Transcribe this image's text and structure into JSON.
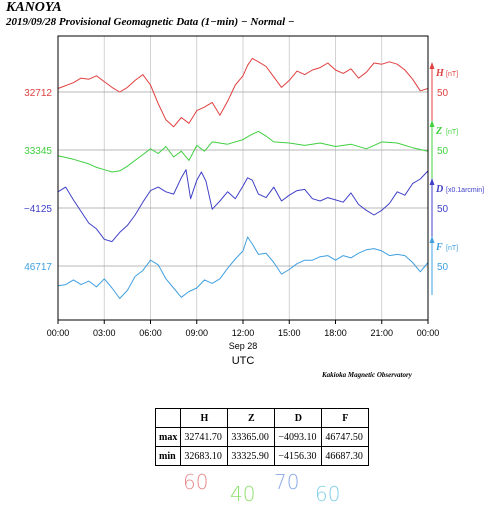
{
  "header": {
    "station": "KANOYA",
    "subtitle": "2019/09/28  Provisional Geomagnetic Data (1−min)  − Normal −"
  },
  "chart_data": {
    "type": "line",
    "x_unit": "hours (UTC)",
    "x_range": [
      0,
      24
    ],
    "x_ticks": [
      0,
      3,
      6,
      9,
      12,
      15,
      18,
      21,
      24
    ],
    "x_tick_labels": [
      "00:00",
      "03:00",
      "06:00",
      "09:00",
      "12:00",
      "15:00",
      "18:00",
      "21:00",
      "00:00"
    ],
    "date_label": "Sep 28",
    "xlabel": "UTC",
    "series": [
      {
        "name": "H",
        "unit": "[nT]",
        "color": "#e04040",
        "baseline": 32712,
        "baseline_label": "32712",
        "scale_label": "50",
        "scale": 50,
        "x": [
          0,
          1,
          1.5,
          2,
          2.5,
          3,
          3.5,
          4,
          4.5,
          5,
          5.5,
          6,
          6.5,
          7,
          7.5,
          8,
          8.5,
          9,
          9.5,
          10,
          10.5,
          11,
          11.5,
          12,
          12.3,
          12.6,
          13,
          13.5,
          14,
          14.5,
          15,
          15.5,
          16,
          16.5,
          17,
          17.5,
          18,
          18.5,
          19,
          19.5,
          20,
          20.5,
          21,
          21.5,
          22,
          22.5,
          23,
          23.5,
          24
        ],
        "values": [
          32715,
          32720,
          32724,
          32723,
          32726,
          32721,
          32716,
          32712,
          32716,
          32722,
          32727,
          32718,
          32702,
          32688,
          32682,
          32690,
          32685,
          32696,
          32699,
          32703,
          32692,
          32704,
          32718,
          32726,
          32735,
          32741,
          32738,
          32734,
          32725,
          32716,
          32722,
          32730,
          32727,
          32731,
          32733,
          32737,
          32731,
          32728,
          32732,
          32724,
          32729,
          32737,
          32736,
          32738,
          32736,
          32731,
          32723,
          32713,
          32715
        ]
      },
      {
        "name": "Z",
        "unit": "[nT]",
        "color": "#40d040",
        "baseline": 33345,
        "baseline_label": "33345",
        "scale_label": "50",
        "scale": 50,
        "x": [
          0,
          1,
          2,
          2.5,
          3,
          3.5,
          4,
          4.5,
          5,
          5.5,
          6,
          6.5,
          7,
          7.5,
          8,
          8.5,
          9,
          9.5,
          10,
          11,
          12,
          12.5,
          13,
          13.5,
          14,
          15,
          16,
          17,
          18,
          19,
          20,
          20.5,
          21,
          22,
          23,
          24
        ],
        "values": [
          33340,
          33337,
          33333,
          33330,
          33328,
          33326,
          33327,
          33331,
          33336,
          33341,
          33346,
          33342,
          33348,
          33339,
          33344,
          33336,
          33349,
          33344,
          33352,
          33350,
          33354,
          33358,
          33361,
          33357,
          33352,
          33351,
          33349,
          33351,
          33348,
          33350,
          33346,
          33349,
          33352,
          33351,
          33347,
          33344
        ]
      },
      {
        "name": "D",
        "unit": "[x0.1arcmin]",
        "color": "#4040c8",
        "baseline": -4125,
        "baseline_label": "−4125",
        "scale_label": "50",
        "scale": 50,
        "x": [
          0,
          0.5,
          1,
          1.5,
          2,
          2.5,
          3,
          3.5,
          4,
          4.5,
          5,
          5.5,
          6,
          6.5,
          7,
          7.5,
          8,
          8.3,
          8.6,
          9,
          9.3,
          9.6,
          10,
          10.5,
          11,
          11.5,
          12,
          12.3,
          12.6,
          13,
          13.5,
          14,
          14.5,
          15,
          15.5,
          16,
          16.5,
          17,
          17.5,
          18,
          18.5,
          19,
          19.5,
          20,
          20.5,
          21,
          21.5,
          22,
          22.5,
          23,
          23.5,
          24
        ],
        "values": [
          -4111,
          -4107,
          -4118,
          -4128,
          -4138,
          -4143,
          -4152,
          -4154,
          -4146,
          -4140,
          -4131,
          -4120,
          -4110,
          -4107,
          -4111,
          -4113,
          -4099,
          -4092,
          -4117,
          -4101,
          -4094,
          -4102,
          -4126,
          -4119,
          -4111,
          -4117,
          -4106,
          -4099,
          -4101,
          -4113,
          -4116,
          -4107,
          -4119,
          -4114,
          -4110,
          -4109,
          -4117,
          -4119,
          -4116,
          -4118,
          -4120,
          -4112,
          -4122,
          -4127,
          -4131,
          -4127,
          -4121,
          -4111,
          -4114,
          -4104,
          -4100,
          -4093
        ]
      },
      {
        "name": "F",
        "unit": "[nT]",
        "color": "#40a0e0",
        "baseline": 46717,
        "baseline_label": "46717",
        "scale_label": "50",
        "scale": 50,
        "x": [
          0,
          0.5,
          1,
          1.5,
          2,
          2.5,
          3,
          3.5,
          4,
          4.5,
          5,
          5.5,
          6,
          6.5,
          7,
          7.5,
          8,
          8.5,
          9,
          9.5,
          10,
          10.5,
          11,
          11.5,
          12,
          12.3,
          12.6,
          13,
          13.5,
          14,
          14.5,
          15,
          15.5,
          16,
          16.5,
          17,
          17.5,
          18,
          18.5,
          19,
          19.5,
          20,
          20.5,
          21,
          21.5,
          22,
          22.5,
          23,
          23.5,
          24
        ],
        "values": [
          46700,
          46701,
          46705,
          46701,
          46704,
          46699,
          46706,
          46698,
          46689,
          46696,
          46708,
          46713,
          46722,
          46718,
          46706,
          46698,
          46690,
          46695,
          46698,
          46705,
          46702,
          46706,
          46715,
          46723,
          46730,
          46742,
          46736,
          46727,
          46728,
          46720,
          46710,
          46714,
          46719,
          46722,
          46722,
          46725,
          46726,
          46722,
          46726,
          46724,
          46728,
          46731,
          46732,
          46730,
          46726,
          46727,
          46726,
          46720,
          46712,
          46720
        ]
      }
    ]
  },
  "credit": "Kakioka Magnetic Observatory",
  "stats_table": {
    "columns": [
      "H",
      "Z",
      "D",
      "F"
    ],
    "rows": [
      {
        "label": "max",
        "values": [
          "32741.70",
          "33365.00",
          "−4093.10",
          "46747.50"
        ]
      },
      {
        "label": "min",
        "values": [
          "32683.10",
          "33325.90",
          "−4156.30",
          "46687.30"
        ]
      }
    ]
  },
  "handwritten_notes": [
    {
      "text": "60",
      "color": "#e88a8a"
    },
    {
      "text": "40",
      "color": "#90e070"
    },
    {
      "text": "70",
      "color": "#8aa8e8"
    },
    {
      "text": "60",
      "color": "#80d0e8"
    }
  ]
}
